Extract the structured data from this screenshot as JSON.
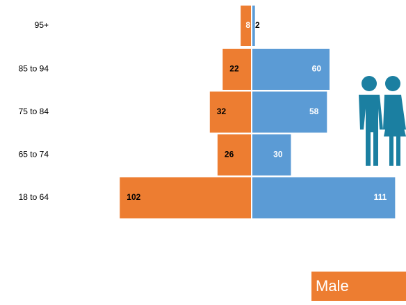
{
  "chart_data": {
    "type": "pyramid",
    "categories": [
      "95+",
      "85 to 94",
      "75 to 84",
      "65 to 74",
      "18 to 64"
    ],
    "series": [
      {
        "name": "Male",
        "color": "#ed7d31",
        "values": [
          8,
          22,
          32,
          26,
          102
        ]
      },
      {
        "color": "#5b9bd5",
        "values": [
          2,
          60,
          58,
          30,
          111
        ]
      }
    ]
  }
}
